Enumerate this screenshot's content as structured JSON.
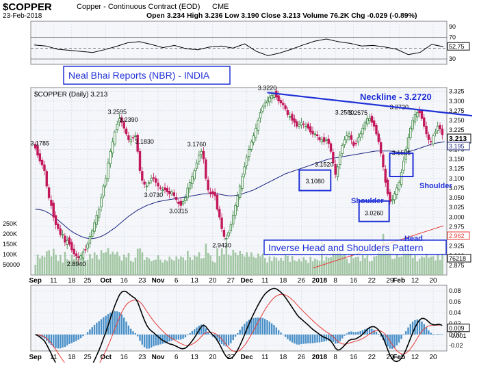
{
  "header": {
    "symbol": "$COPPER",
    "name": "Copper - Continuous Contract (EOD)",
    "exchange": "CME",
    "date": "23-Feb-2018",
    "ohlc_line": "Open 3.234  High 3.236  Low 3.190  Close 3.213  Volume 76.2K  Chg -0.029 (-0.89%)"
  },
  "colors": {
    "background": "#ffffff",
    "panel_bg": "#f4f6fa",
    "grid": "#c9d1de",
    "up_candle": "#2e7d32",
    "down_candle": "#c2185b",
    "moving_average": "#1a237e",
    "volume": "#8fbc8f",
    "neckline": "#1f30d6",
    "pattern_box": "#1f30d6",
    "support_line": "#e53935",
    "annotation_text": "#1f30d6",
    "macd_line": "#000000",
    "signal_line": "#e53935",
    "histogram": "#4a90c8"
  },
  "labels": {
    "brand": "Neal Bhai Reports (NBR) - INDIA",
    "neckline": "Neckline - 3.2720",
    "pattern": "Inverse Head and Shoulders Pattern",
    "shoulder_left": "Shoulder",
    "shoulder_right": "Shoulder",
    "head": "Head"
  },
  "main_panel": {
    "legend": "$COPPER (Daily) 3.213",
    "last_price": "3.213",
    "last_ma": "3.195"
  },
  "volume_panel": {
    "last_value": "76218",
    "last_value2": "2.962"
  },
  "chart_data": [
    {
      "type": "line",
      "name": "RSI",
      "ylim": [
        20,
        100
      ],
      "ytick_labels": [
        "90",
        "70",
        "50",
        "30"
      ],
      "ytick_values": [
        90,
        70,
        50,
        30
      ],
      "reference_levels": [
        70,
        50,
        30
      ],
      "last_value": "52.75",
      "x": [
        0,
        5,
        10,
        15,
        20,
        25,
        30,
        35,
        40,
        45,
        50,
        55,
        60,
        65,
        70,
        75,
        80,
        85,
        90,
        95,
        100,
        105,
        110,
        115,
        120,
        125,
        130,
        135,
        140,
        145,
        150,
        155,
        160,
        165,
        170,
        175
      ],
      "values": [
        56,
        54,
        48,
        46,
        44,
        42,
        47,
        53,
        60,
        62,
        57,
        51,
        55,
        49,
        47,
        52,
        54,
        50,
        58,
        44,
        36,
        41,
        48,
        56,
        63,
        67,
        62,
        59,
        54,
        55,
        52,
        48,
        38,
        42,
        57,
        52.75
      ]
    },
    {
      "type": "candlestick",
      "name": "$COPPER (Daily)",
      "ylim": [
        2.85,
        3.335
      ],
      "ytick_values": [
        2.875,
        2.9,
        2.925,
        2.95,
        2.975,
        3.0,
        3.025,
        3.05,
        3.075,
        3.1,
        3.125,
        3.15,
        3.175,
        3.2,
        3.225,
        3.25,
        3.275,
        3.3,
        3.325
      ],
      "ytick_labels": [
        "2.875",
        "2.900",
        "2.925",
        "2.950",
        "2.975",
        "3.000",
        "3.025",
        "3.050",
        "3.075",
        "3.100",
        "3.125",
        "3.150",
        "3.175",
        "3.200",
        "3.225",
        "3.250",
        "3.275",
        "3.300",
        "3.325"
      ],
      "x_tick_labels": [
        {
          "x": 0,
          "label": "Sep",
          "major": true
        },
        {
          "x": 8,
          "label": "11"
        },
        {
          "x": 16,
          "label": "18"
        },
        {
          "x": 24,
          "label": "25"
        },
        {
          "x": 32,
          "label": "Oct",
          "major": true
        },
        {
          "x": 40,
          "label": "16"
        },
        {
          "x": 48,
          "label": "23"
        },
        {
          "x": 56,
          "label": "Nov",
          "major": true
        },
        {
          "x": 64,
          "label": "6"
        },
        {
          "x": 72,
          "label": "13"
        },
        {
          "x": 80,
          "label": "20"
        },
        {
          "x": 88,
          "label": "27"
        },
        {
          "x": 96,
          "label": "Dec",
          "major": true
        },
        {
          "x": 104,
          "label": "11"
        },
        {
          "x": 112,
          "label": "18"
        },
        {
          "x": 120,
          "label": "26"
        },
        {
          "x": 128,
          "label": "2018",
          "major": true
        },
        {
          "x": 136,
          "label": "8"
        },
        {
          "x": 144,
          "label": "16"
        },
        {
          "x": 152,
          "label": "22"
        },
        {
          "x": 160,
          "label": "29"
        },
        {
          "x": 164,
          "label": "Feb",
          "major": true
        },
        {
          "x": 172,
          "label": "12"
        },
        {
          "x": 180,
          "label": "20"
        }
      ],
      "close": [
        3.178,
        3.16,
        3.145,
        3.135,
        3.12,
        3.08,
        3.05,
        3.03,
        3.0,
        2.98,
        2.97,
        2.955,
        2.955,
        2.935,
        2.94,
        2.93,
        2.915,
        2.905,
        2.9,
        2.895,
        2.9,
        2.91,
        2.915,
        2.93,
        2.95,
        2.965,
        2.985,
        3.005,
        3.02,
        3.05,
        3.08,
        3.1,
        3.14,
        3.17,
        3.195,
        3.22,
        3.24,
        3.255,
        3.245,
        3.23,
        3.215,
        3.2,
        3.2,
        3.205,
        3.21,
        3.17,
        3.12,
        3.095,
        3.085,
        3.08,
        3.09,
        3.1,
        3.1,
        3.09,
        3.08,
        3.075,
        3.07,
        3.07,
        3.065,
        3.06,
        3.065,
        3.055,
        3.045,
        3.035,
        3.03,
        3.04,
        3.05,
        3.075,
        3.09,
        3.105,
        3.12,
        3.14,
        3.16,
        3.17,
        3.15,
        3.1,
        3.07,
        3.06,
        3.06,
        3.055,
        3.02,
        3.0,
        2.97,
        2.95,
        2.945,
        2.96,
        2.98,
        3.005,
        3.03,
        3.055,
        3.08,
        3.105,
        3.13,
        3.155,
        3.175,
        3.195,
        3.21,
        3.23,
        3.25,
        3.27,
        3.285,
        3.295,
        3.3,
        3.31,
        3.315,
        3.32,
        3.31,
        3.3,
        3.295,
        3.29,
        3.28,
        3.265,
        3.26,
        3.25,
        3.245,
        3.235,
        3.24,
        3.245,
        3.24,
        3.235,
        3.23,
        3.22,
        3.215,
        3.215,
        3.21,
        3.2,
        3.2,
        3.195,
        3.2,
        3.19,
        3.17,
        3.14,
        3.11,
        3.13,
        3.16,
        3.185,
        3.2,
        3.21,
        3.215,
        3.2,
        3.185,
        3.19,
        3.205,
        3.215,
        3.23,
        3.245,
        3.255,
        3.255,
        3.245,
        3.235,
        3.215,
        3.195,
        3.165,
        3.13,
        3.09,
        3.06,
        3.04,
        3.045,
        3.06,
        3.075,
        3.09,
        3.115,
        3.145,
        3.175,
        3.205,
        3.23,
        3.25,
        3.265,
        3.27,
        3.27,
        3.255,
        3.235,
        3.215,
        3.2,
        3.195,
        3.21,
        3.22,
        3.235,
        3.228,
        3.213
      ],
      "ma_values": [
        3.02,
        3.02,
        3.019,
        3.018,
        3.016,
        3.013,
        3.01,
        3.006,
        3.002,
        2.997,
        2.992,
        2.987,
        2.982,
        2.977,
        2.972,
        2.967,
        2.963,
        2.959,
        2.956,
        2.953,
        2.95,
        2.948,
        2.946,
        2.945,
        2.944,
        2.944,
        2.945,
        2.946,
        2.948,
        2.95,
        2.953,
        2.956,
        2.96,
        2.964,
        2.968,
        2.972,
        2.977,
        2.982,
        2.987,
        2.992,
        2.997,
        3.002,
        3.006,
        3.01,
        3.014,
        3.018,
        3.021,
        3.024,
        3.027,
        3.03,
        3.032,
        3.034,
        3.036,
        3.038,
        3.04,
        3.041,
        3.042,
        3.043,
        3.044,
        3.045,
        3.046,
        3.047,
        3.048,
        3.049,
        3.05,
        3.051,
        3.052,
        3.053,
        3.054,
        3.055,
        3.056,
        3.057,
        3.058,
        3.059,
        3.06,
        3.06,
        3.06,
        3.06,
        3.06,
        3.06,
        3.06,
        3.059,
        3.058,
        3.057,
        3.056,
        3.055,
        3.055,
        3.055,
        3.056,
        3.057,
        3.058,
        3.06,
        3.062,
        3.064,
        3.066,
        3.068,
        3.07,
        3.073,
        3.076,
        3.079,
        3.082,
        3.085,
        3.088,
        3.091,
        3.094,
        3.097,
        3.1,
        3.103,
        3.106,
        3.109,
        3.112,
        3.114,
        3.116,
        3.118,
        3.12,
        3.122,
        3.124,
        3.126,
        3.128,
        3.13,
        3.132,
        3.134,
        3.136,
        3.138,
        3.14,
        3.142,
        3.144,
        3.146,
        3.148,
        3.15,
        3.151,
        3.152,
        3.153,
        3.154,
        3.155,
        3.156,
        3.157,
        3.158,
        3.159,
        3.16,
        3.161,
        3.162,
        3.163,
        3.164,
        3.165,
        3.166,
        3.167,
        3.168,
        3.169,
        3.17,
        3.171,
        3.171,
        3.171,
        3.171,
        3.171,
        3.171,
        3.171,
        3.17,
        3.169,
        3.168,
        3.167,
        3.167,
        3.167,
        3.168,
        3.169,
        3.17,
        3.172,
        3.174,
        3.176,
        3.178,
        3.18,
        3.182,
        3.184,
        3.186,
        3.188,
        3.19,
        3.191,
        3.192,
        3.193,
        3.194,
        3.195
      ],
      "price_annotations": [
        {
          "x": 2,
          "value": "3.1785"
        },
        {
          "x": 19,
          "value": "2.8940"
        },
        {
          "x": 37,
          "value": "3.2595"
        },
        {
          "x": 42,
          "value": "3.2390"
        },
        {
          "x": 49,
          "value": "3.1830"
        },
        {
          "x": 53,
          "value": "3.0730"
        },
        {
          "x": 65,
          "value": "3.0315"
        },
        {
          "x": 73,
          "value": "3.1760"
        },
        {
          "x": 84,
          "value": "2.9430"
        },
        {
          "x": 105,
          "value": "3.3220"
        },
        {
          "x": 126,
          "value": "3.1080"
        },
        {
          "x": 131,
          "value": "3.1520"
        },
        {
          "x": 140,
          "value": "3.2580"
        },
        {
          "x": 146,
          "value": "3.2575"
        },
        {
          "x": 153,
          "value": "3.0260"
        },
        {
          "x": 164,
          "value": "3.2720"
        },
        {
          "x": 166,
          "value": "3.1535"
        }
      ]
    },
    {
      "type": "bar",
      "name": "Volume",
      "ytick_labels": [
        "250K",
        "200K",
        "150K",
        "100K",
        "50000"
      ],
      "ytick_values": [
        250000,
        200000,
        150000,
        100000,
        50000
      ]
    },
    {
      "type": "line",
      "name": "MACD",
      "ylim": [
        -0.03,
        0.09
      ],
      "ytick_labels": [
        "0.08",
        "0.06",
        "0.04",
        "0.02",
        "0.00",
        "-0.02"
      ],
      "ytick_values": [
        0.08,
        0.06,
        0.04,
        0.02,
        0.0,
        -0.02
      ],
      "last_macd": "0.009",
      "last_signal": "0.008",
      "last_hist": "-0.001"
    }
  ]
}
